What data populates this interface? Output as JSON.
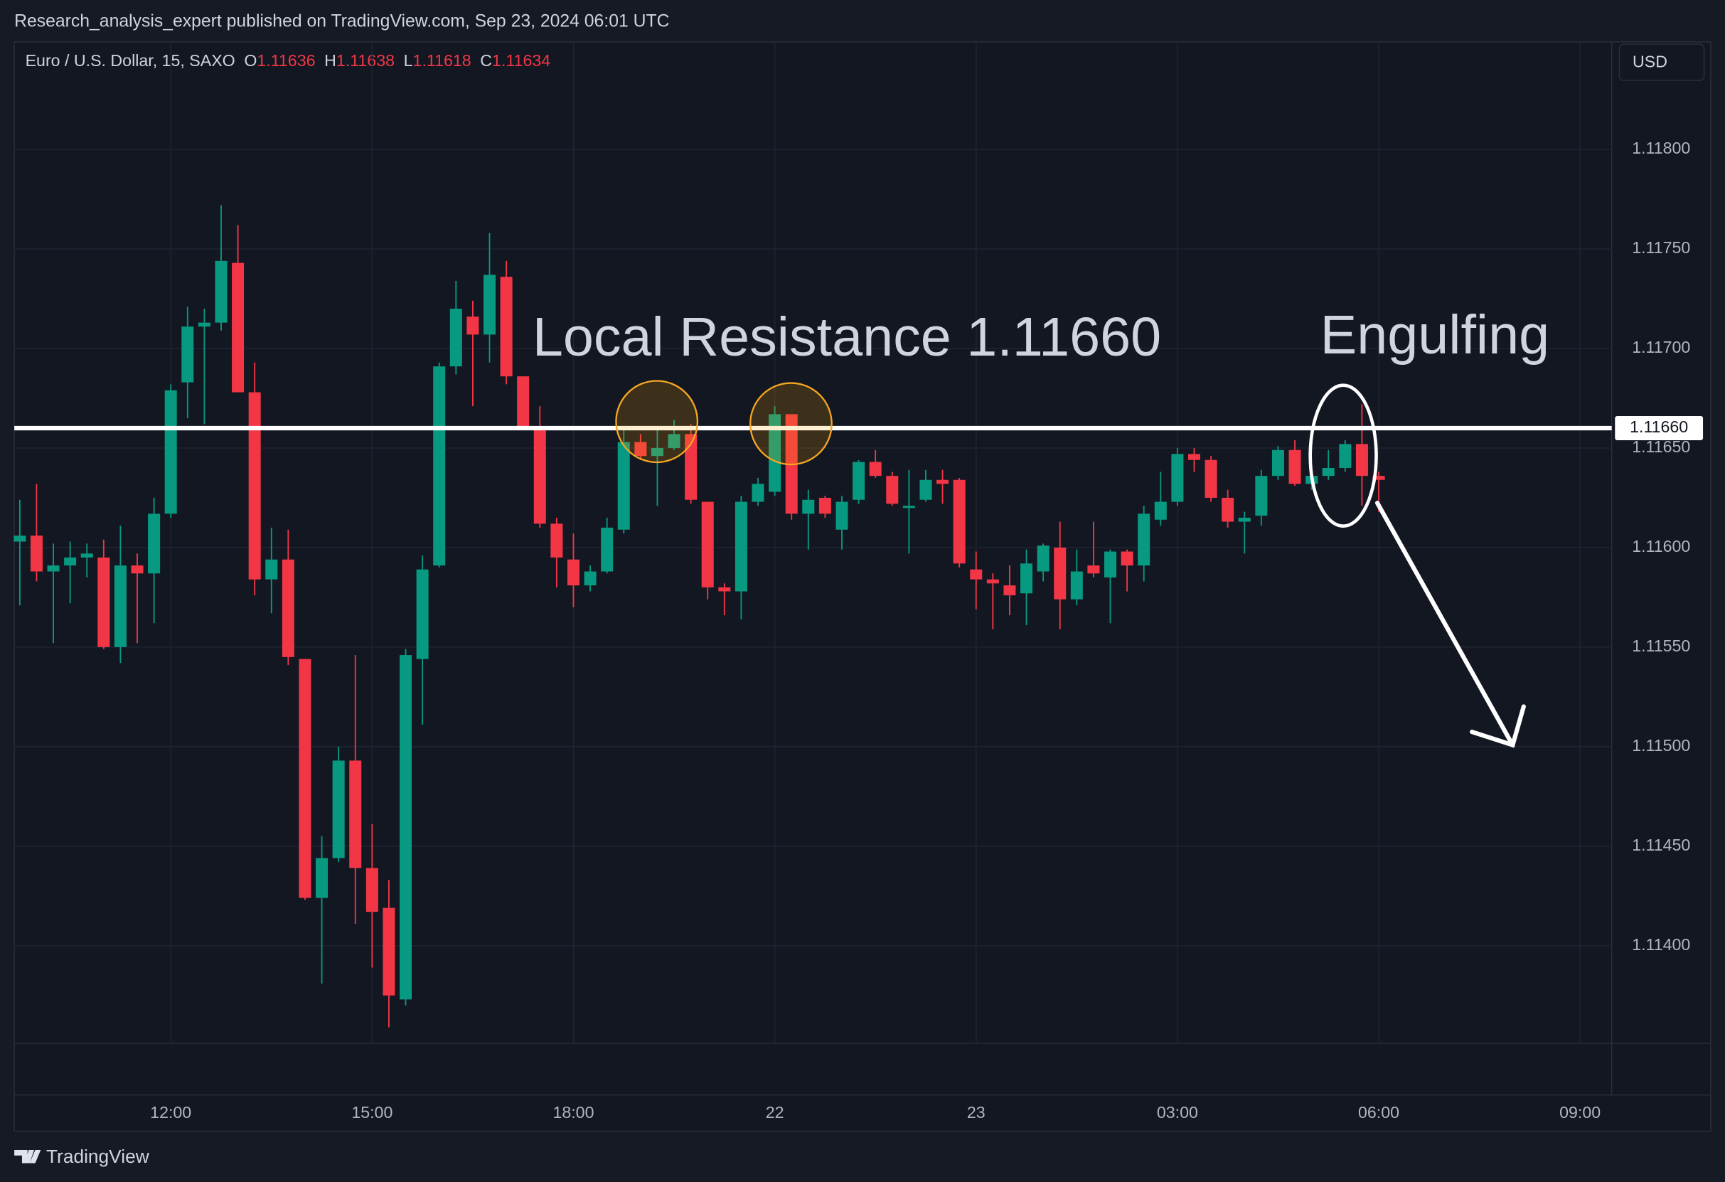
{
  "header": {
    "published": "Research_analysis_expert published on TradingView.com, Sep 23, 2024 06:01 UTC",
    "currency": "USD",
    "brand": "TradingView"
  },
  "chart_data": {
    "type": "candlestick",
    "symbol": "Euro / U.S. Dollar, 15, SAXO",
    "ohlc_labels": [
      "O",
      "H",
      "L",
      "C"
    ],
    "up_color": "#089981",
    "down_color": "#f23645",
    "categories": [
      null,
      null,
      null,
      null,
      null,
      null,
      null,
      null,
      null,
      "12:00",
      null,
      null,
      null,
      null,
      null,
      null,
      null,
      null,
      null,
      null,
      null,
      "15:00",
      null,
      null,
      null,
      null,
      null,
      null,
      null,
      null,
      null,
      null,
      null,
      "18:00",
      null,
      null,
      null,
      null,
      null,
      null,
      null,
      null,
      null,
      null,
      null,
      "22",
      null,
      null,
      null,
      null,
      null,
      null,
      null,
      null,
      null,
      null,
      null,
      "23",
      null,
      null,
      null,
      null,
      null,
      null,
      null,
      null,
      null,
      null,
      null,
      "03:00",
      null,
      null,
      null,
      null,
      null,
      null,
      null,
      null,
      null,
      null,
      null,
      "06:00",
      null,
      null,
      null,
      null,
      null,
      null,
      null,
      null,
      null,
      null,
      null,
      "09:00",
      null
    ],
    "open": [
      1.11603,
      1.11606,
      1.11588,
      1.11591,
      1.11595,
      1.11595,
      1.1155,
      1.11591,
      1.11587,
      1.11617,
      1.11683,
      1.11711,
      1.11713,
      1.11743,
      1.11678,
      1.11584,
      1.11594,
      1.11544,
      1.11424,
      1.11444,
      1.11493,
      1.11439,
      1.11419,
      1.11373,
      1.11544,
      1.11591,
      1.11691,
      1.11716,
      1.11707,
      1.11736,
      1.11686,
      1.11661,
      1.11612,
      1.11594,
      1.11581,
      1.11588,
      1.11609,
      1.11653,
      1.11646,
      1.1165,
      1.11657,
      1.11623,
      1.1158,
      1.11578,
      1.11623,
      1.11628,
      1.11667,
      1.11617,
      1.11625,
      1.11609,
      1.11624,
      1.11643,
      1.11636,
      1.1162,
      1.11624,
      1.11634,
      1.11634,
      1.11589,
      1.11584,
      1.11581,
      1.11577,
      1.11588,
      1.116,
      1.11574,
      1.11591,
      1.11585,
      1.11598,
      1.11591,
      1.11614,
      1.11623,
      1.11647,
      1.11644,
      1.11625,
      1.11613,
      1.11616,
      1.11636,
      1.11649,
      1.11632,
      1.11636,
      1.1164,
      1.11652,
      1.11636,
      null,
      null,
      null,
      null,
      null,
      null,
      null,
      null,
      null,
      null,
      null,
      null,
      null
    ],
    "high": [
      1.11624,
      1.11632,
      1.11602,
      1.11603,
      1.11602,
      1.11604,
      1.11611,
      1.11597,
      1.11625,
      1.11682,
      1.11721,
      1.1172,
      1.11772,
      1.11762,
      1.11693,
      1.1161,
      1.11609,
      1.11544,
      1.11455,
      1.115,
      1.11546,
      1.11461,
      1.11433,
      1.11549,
      1.11596,
      1.11693,
      1.11734,
      1.11724,
      1.11758,
      1.11744,
      1.11686,
      1.11671,
      1.11615,
      1.11607,
      1.11591,
      1.11615,
      1.1166,
      1.11657,
      1.1166,
      1.11664,
      1.11662,
      1.11623,
      1.11582,
      1.11626,
      1.11635,
      1.11671,
      1.11667,
      1.11629,
      1.11626,
      1.11626,
      1.11644,
      1.11649,
      1.11638,
      1.11639,
      1.11639,
      1.11639,
      1.11635,
      1.11598,
      1.11587,
      1.11591,
      1.11599,
      1.11602,
      1.11613,
      1.11599,
      1.11613,
      1.11599,
      1.11599,
      1.11621,
      1.11638,
      1.1165,
      1.1165,
      1.11646,
      1.11629,
      1.11618,
      1.11639,
      1.11651,
      1.11654,
      1.11639,
      1.11649,
      1.11654,
      1.11672,
      1.11638,
      null,
      null,
      null,
      null,
      null,
      null,
      null,
      null,
      null,
      null,
      null,
      null,
      null
    ],
    "low": [
      1.11571,
      1.11583,
      1.11552,
      1.11572,
      1.11585,
      1.11549,
      1.11542,
      1.11552,
      1.11562,
      1.11615,
      1.11665,
      1.11662,
      1.11709,
      1.11678,
      1.11576,
      1.11567,
      1.11541,
      1.11423,
      1.11381,
      1.11442,
      1.11411,
      1.11389,
      1.11359,
      1.1137,
      1.11511,
      1.1159,
      1.11687,
      1.11671,
      1.11693,
      1.11682,
      1.1166,
      1.1161,
      1.1158,
      1.1157,
      1.11578,
      1.11587,
      1.11607,
      1.11644,
      1.11621,
      1.11649,
      1.11622,
      1.11574,
      1.11566,
      1.11564,
      1.11621,
      1.11626,
      1.11614,
      1.11599,
      1.11615,
      1.11599,
      1.11622,
      1.11635,
      1.11621,
      1.11597,
      1.11623,
      1.11622,
      1.1159,
      1.11569,
      1.11559,
      1.11566,
      1.11561,
      1.11583,
      1.11559,
      1.11571,
      1.11585,
      1.11562,
      1.11578,
      1.11583,
      1.11611,
      1.11621,
      1.11638,
      1.11623,
      1.1161,
      1.11597,
      1.11611,
      1.11634,
      1.11631,
      1.11629,
      1.11634,
      1.11638,
      1.11621,
      1.11618,
      null,
      null,
      null,
      null,
      null,
      null,
      null,
      null,
      null,
      null,
      null,
      null,
      null
    ],
    "close": [
      1.11606,
      1.11588,
      1.11591,
      1.11595,
      1.11597,
      1.1155,
      1.11591,
      1.11587,
      1.11617,
      1.11679,
      1.11711,
      1.11713,
      1.11744,
      1.11678,
      1.11584,
      1.11594,
      1.11545,
      1.11424,
      1.11444,
      1.11493,
      1.11439,
      1.11417,
      1.11375,
      1.11546,
      1.11589,
      1.11691,
      1.1172,
      1.11707,
      1.11737,
      1.11686,
      1.11661,
      1.11612,
      1.11595,
      1.11581,
      1.11588,
      1.1161,
      1.11653,
      1.11646,
      1.1165,
      1.11657,
      1.11624,
      1.1158,
      1.11578,
      1.11623,
      1.11632,
      1.11667,
      1.11617,
      1.11624,
      1.11617,
      1.11623,
      1.11643,
      1.11636,
      1.11622,
      1.11621,
      1.11634,
      1.11632,
      1.11592,
      1.11584,
      1.11582,
      1.11576,
      1.11592,
      1.11601,
      1.11574,
      1.11588,
      1.11587,
      1.11598,
      1.11591,
      1.11617,
      1.11623,
      1.11647,
      1.11644,
      1.11625,
      1.11613,
      1.11615,
      1.11636,
      1.11649,
      1.11632,
      1.11636,
      1.1164,
      1.11652,
      1.11636,
      1.11634,
      null,
      null,
      null,
      null,
      null,
      null,
      null,
      null,
      null,
      null,
      null,
      null,
      null
    ],
    "ylim": [
      1.11351,
      1.11854
    ],
    "yticks": [
      {
        "value": 1.114,
        "label": "1.11400"
      },
      {
        "value": 1.1145,
        "label": "1.11450"
      },
      {
        "value": 1.115,
        "label": "1.11500"
      },
      {
        "value": 1.1155,
        "label": "1.11550"
      },
      {
        "value": 1.116,
        "label": "1.11600"
      },
      {
        "value": 1.1165,
        "label": "1.11650"
      },
      {
        "value": 1.117,
        "label": "1.11700"
      },
      {
        "value": 1.1175,
        "label": "1.11750"
      },
      {
        "value": 1.118,
        "label": "1.11800"
      }
    ],
    "grid": true,
    "hline": {
      "value": 1.1166,
      "label": "1.11660",
      "color": "#ffffff"
    },
    "annotations": [
      "Local Resistance 1.11660",
      "Engulfing"
    ]
  }
}
